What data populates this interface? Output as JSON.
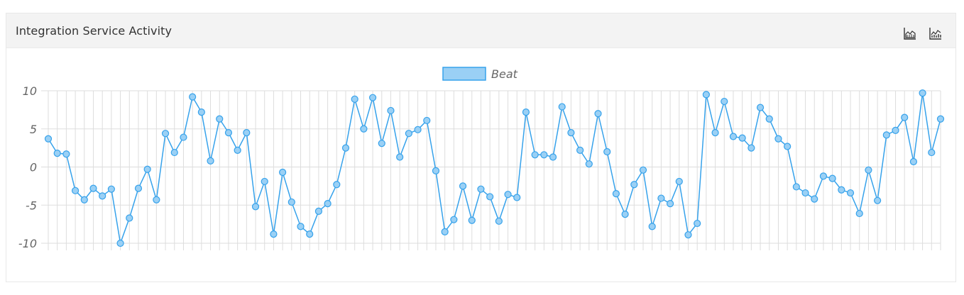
{
  "panel": {
    "title": "Integration Service Activity",
    "tools": [
      {
        "icon": "area-chart-icon"
      },
      {
        "icon": "line-chart-icon"
      }
    ]
  },
  "colors": {
    "line": "#36a2eb",
    "point_fill": "#9ad0f5",
    "grid": "#dddddd",
    "axis_text": "#666666"
  },
  "chart_data": {
    "type": "line",
    "title": "",
    "xlabel": "",
    "ylabel": "",
    "ylim": [
      -10,
      10
    ],
    "yticks": [
      10,
      5,
      0,
      -5,
      -10
    ],
    "grid": true,
    "legend_position": "top",
    "series": [
      {
        "name": "Beat",
        "values": [
          3.7,
          1.8,
          1.7,
          -3.1,
          -4.3,
          -2.8,
          -3.8,
          -2.9,
          -10.0,
          -6.7,
          -2.8,
          -0.3,
          -4.3,
          4.4,
          1.9,
          3.9,
          9.2,
          7.2,
          0.8,
          6.3,
          4.5,
          2.2,
          4.5,
          -5.2,
          -1.9,
          -8.8,
          -0.7,
          -4.6,
          -7.8,
          -8.8,
          -5.8,
          -4.8,
          -2.3,
          2.5,
          8.9,
          5.0,
          9.1,
          3.1,
          7.4,
          1.3,
          4.4,
          4.9,
          6.1,
          -0.5,
          -8.5,
          -6.9,
          -2.5,
          -7.0,
          -2.9,
          -3.9,
          -7.1,
          -3.6,
          -4.0,
          7.2,
          1.6,
          1.6,
          1.3,
          7.9,
          4.5,
          2.2,
          0.4,
          7.0,
          2.0,
          -3.5,
          -6.2,
          -2.3,
          -0.4,
          -7.8,
          -4.1,
          -4.8,
          -1.9,
          -8.9,
          -7.4,
          9.5,
          4.5,
          8.6,
          4.0,
          3.8,
          2.5,
          7.8,
          6.3,
          3.7,
          2.7,
          -2.6,
          -3.4,
          -4.2,
          -1.2,
          -1.5,
          -3.0,
          -3.4,
          -6.1,
          -0.4,
          -4.4,
          4.2,
          4.8,
          6.5,
          0.7,
          9.7,
          1.9,
          6.3
        ]
      }
    ]
  }
}
